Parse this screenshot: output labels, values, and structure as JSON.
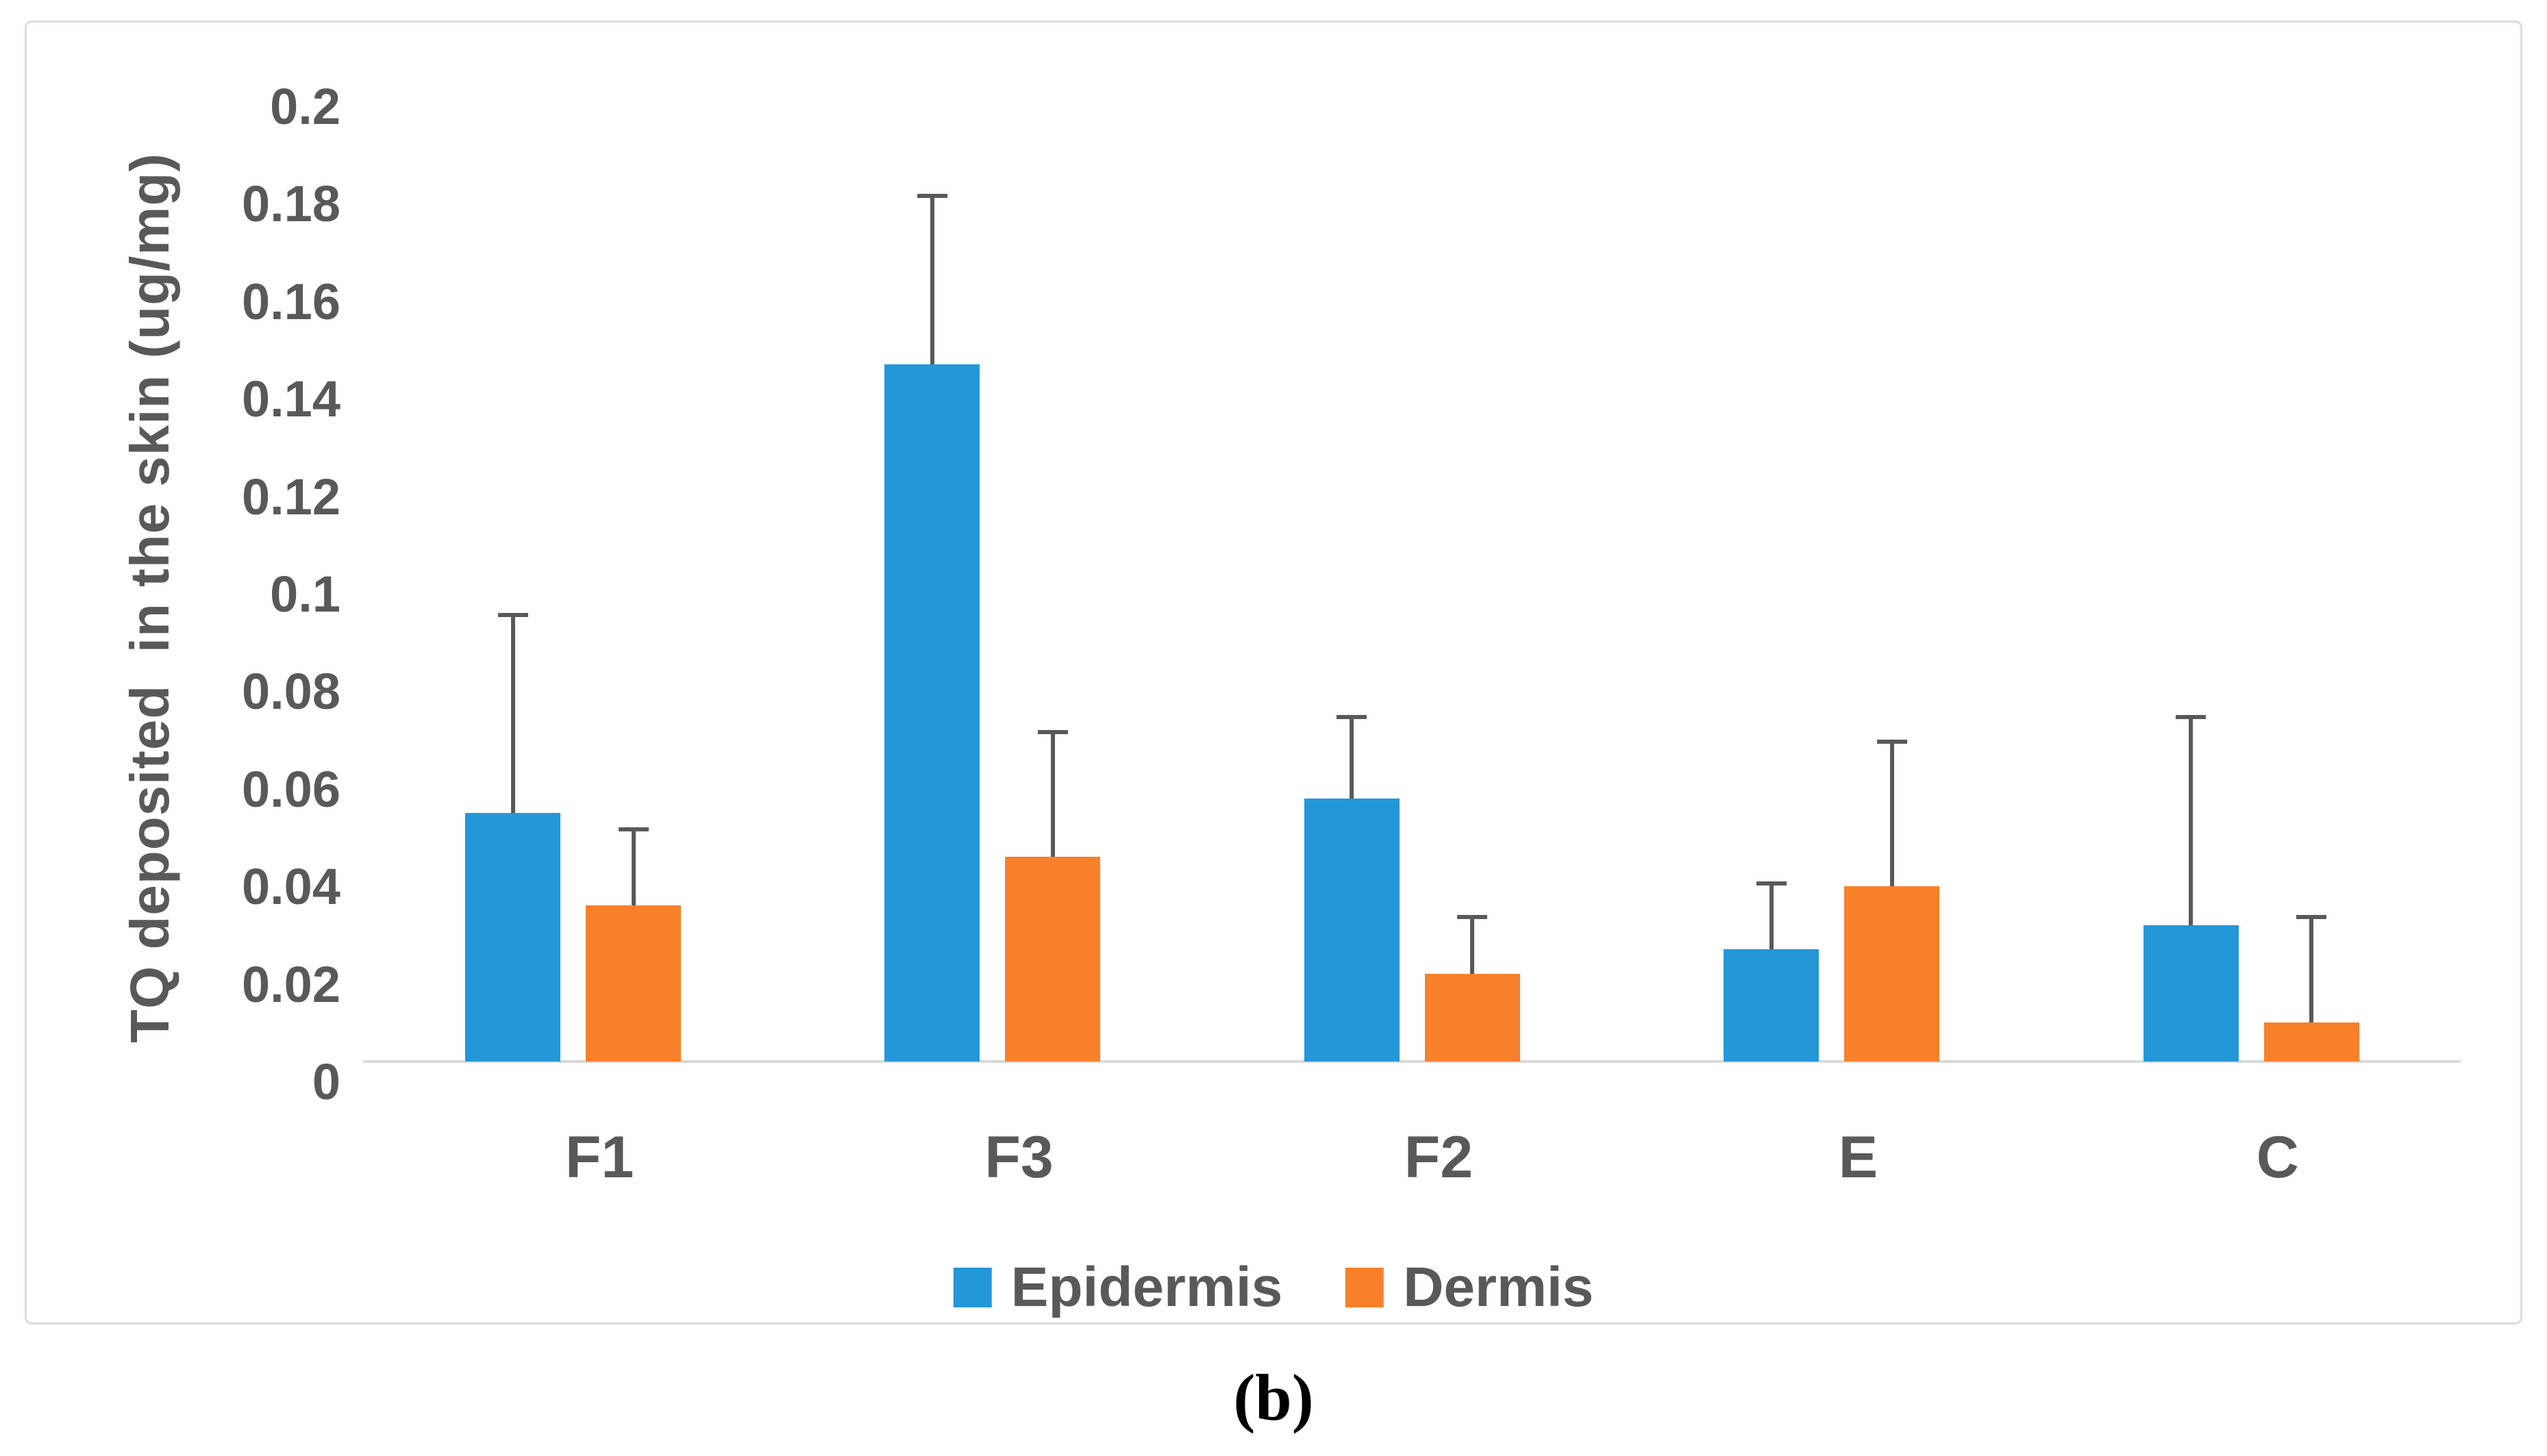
{
  "caption": "(b)",
  "legend": {
    "items": [
      {
        "label": "Epidermis",
        "color": "#2397d8"
      },
      {
        "label": "Dermis",
        "color": "#f8802b"
      }
    ]
  },
  "chart_data": {
    "type": "bar",
    "title": "",
    "xlabel": "",
    "ylabel": "TQ deposited  in the skin (ug/mg)",
    "categories": [
      "F1",
      "F3",
      "F2",
      "E",
      "C"
    ],
    "series": [
      {
        "name": "Epidermis",
        "color": "#2397d8",
        "values": [
          0.051,
          0.143,
          0.054,
          0.023,
          0.028
        ],
        "error_plus": [
          0.041,
          0.035,
          0.017,
          0.014,
          0.043
        ]
      },
      {
        "name": "Dermis",
        "color": "#f8802b",
        "values": [
          0.032,
          0.042,
          0.018,
          0.036,
          0.008
        ],
        "error_plus": [
          0.016,
          0.026,
          0.012,
          0.03,
          0.022
        ]
      }
    ],
    "ylim": [
      0,
      0.2
    ],
    "ytick_step": 0.02,
    "ytick_labels": [
      "0",
      "0.02",
      "0.04",
      "0.06",
      "0.08",
      "0.1",
      "0.12",
      "0.14",
      "0.16",
      "0.18",
      "0.2"
    ],
    "grid": false,
    "legend_position": "bottom",
    "error_bar_color": "#58595b",
    "axis_line_color": "#d9d9d9",
    "text_color": "#595959"
  }
}
